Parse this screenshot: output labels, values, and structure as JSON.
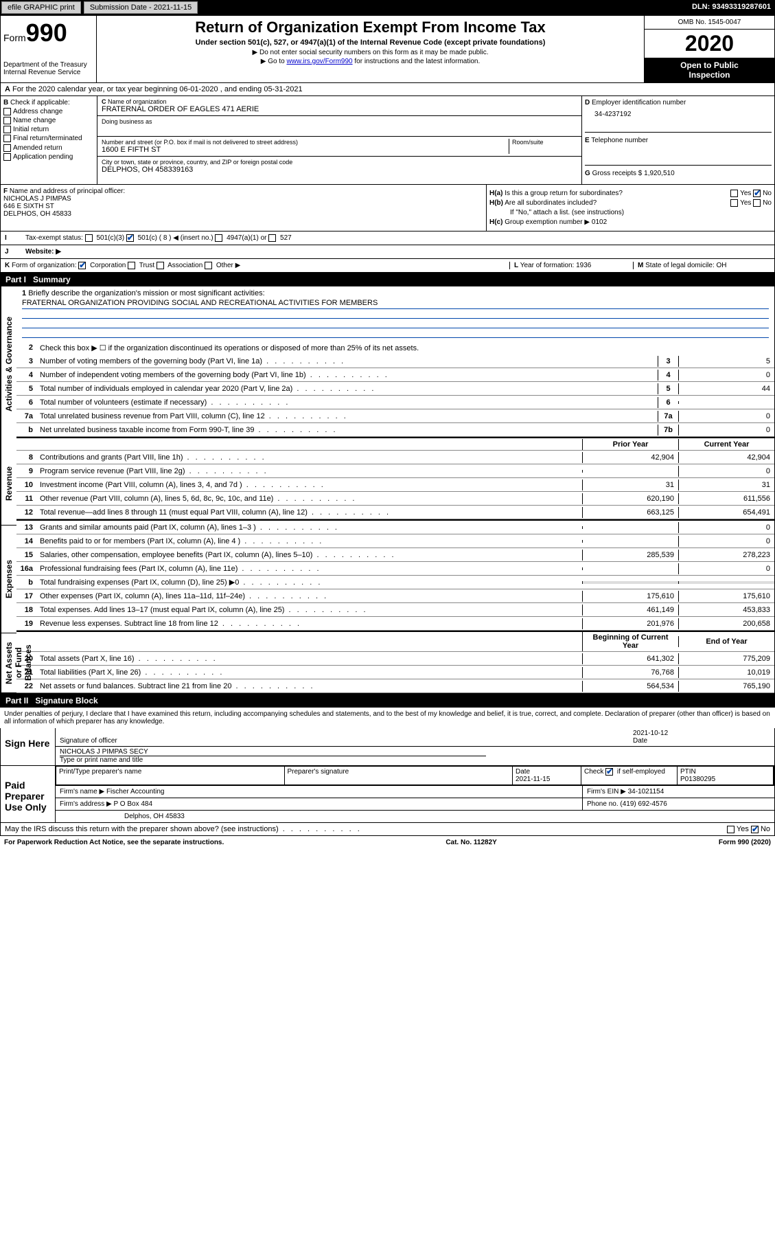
{
  "topbar": {
    "efile": "efile GRAPHIC print",
    "subdate_label": "Submission Date - 2021-11-15",
    "dln_label": "DLN: 93493319287601"
  },
  "header": {
    "form_word": "Form",
    "form_num": "990",
    "dept1": "Department of the Treasury",
    "dept2": "Internal Revenue Service",
    "title": "Return of Organization Exempt From Income Tax",
    "sub1": "Under section 501(c), 527, or 4947(a)(1) of the Internal Revenue Code (except private foundations)",
    "sub2": "Do not enter social security numbers on this form as it may be made public.",
    "sub3_pre": "Go to ",
    "sub3_link": "www.irs.gov/Form990",
    "sub3_post": " for instructions and the latest information.",
    "omb": "OMB No. 1545-0047",
    "year": "2020",
    "inspection1": "Open to Public",
    "inspection2": "Inspection"
  },
  "lineA": "For the 2020 calendar year, or tax year beginning 06-01-2020    , and ending 05-31-2021",
  "boxB": {
    "label": "Check if applicable:",
    "opts": [
      "Address change",
      "Name change",
      "Initial return",
      "Final return/terminated",
      "Amended return",
      "Application pending"
    ]
  },
  "boxC": {
    "name_label": "Name of organization",
    "name": "FRATERNAL ORDER OF EAGLES 471 AERIE",
    "dba_label": "Doing business as",
    "street_label": "Number and street (or P.O. box if mail is not delivered to street address)",
    "room_label": "Room/suite",
    "street": "1600 E FIFTH ST",
    "city_label": "City or town, state or province, country, and ZIP or foreign postal code",
    "city": "DELPHOS, OH  458339163"
  },
  "boxD": {
    "label": "Employer identification number",
    "val": "34-4237192"
  },
  "boxE": {
    "label": "Telephone number",
    "val": ""
  },
  "boxG": {
    "label": "Gross receipts $",
    "val": "1,920,510"
  },
  "boxF": {
    "label": "Name and address of principal officer:",
    "name": "NICHOLAS J PIMPAS",
    "street": "646 E SIXTH ST",
    "city": "DELPHOS, OH  45833"
  },
  "boxH": {
    "a": "Is this a group return for subordinates?",
    "b": "Are all subordinates included?",
    "b_note": "If \"No,\" attach a list. (see instructions)",
    "c": "Group exemption number ▶",
    "c_val": "0102"
  },
  "boxI": {
    "label": "Tax-exempt status:",
    "c8": "501(c) ( 8 ) ◀ (insert no.)"
  },
  "boxJ": {
    "label": "Website: ▶"
  },
  "boxK": {
    "label": "Form of organization:"
  },
  "boxL": {
    "label": "Year of formation:",
    "val": "1936"
  },
  "boxM": {
    "label": "State of legal domicile:",
    "val": "OH"
  },
  "part1": {
    "header_num": "Part I",
    "header_title": "Summary",
    "vert1": "Activities & Governance",
    "vert2": "Revenue",
    "vert3": "Expenses",
    "vert4": "Net Assets or Fund Balances",
    "line1_label": "Briefly describe the organization's mission or most significant activities:",
    "line1_val": "FRATERNAL ORGANIZATION PROVIDING SOCIAL AND RECREATIONAL ACTIVITIES FOR MEMBERS",
    "line2": "Check this box ▶ ☐  if the organization discontinued its operations or disposed of more than 25% of its net assets.",
    "lines_gov": [
      {
        "n": "3",
        "t": "Number of voting members of the governing body (Part VI, line 1a)",
        "box": "3",
        "v": "5"
      },
      {
        "n": "4",
        "t": "Number of independent voting members of the governing body (Part VI, line 1b)",
        "box": "4",
        "v": "0"
      },
      {
        "n": "5",
        "t": "Total number of individuals employed in calendar year 2020 (Part V, line 2a)",
        "box": "5",
        "v": "44"
      },
      {
        "n": "6",
        "t": "Total number of volunteers (estimate if necessary)",
        "box": "6",
        "v": ""
      },
      {
        "n": "7a",
        "t": "Total unrelated business revenue from Part VIII, column (C), line 12",
        "box": "7a",
        "v": "0"
      },
      {
        "n": "b",
        "t": "Net unrelated business taxable income from Form 990-T, line 39",
        "box": "7b",
        "v": "0"
      }
    ],
    "col_prior": "Prior Year",
    "col_current": "Current Year",
    "col_begin": "Beginning of Current Year",
    "col_end": "End of Year",
    "lines_rev": [
      {
        "n": "8",
        "t": "Contributions and grants (Part VIII, line 1h)",
        "p": "42,904",
        "c": "42,904"
      },
      {
        "n": "9",
        "t": "Program service revenue (Part VIII, line 2g)",
        "p": "",
        "c": "0"
      },
      {
        "n": "10",
        "t": "Investment income (Part VIII, column (A), lines 3, 4, and 7d )",
        "p": "31",
        "c": "31"
      },
      {
        "n": "11",
        "t": "Other revenue (Part VIII, column (A), lines 5, 6d, 8c, 9c, 10c, and 11e)",
        "p": "620,190",
        "c": "611,556"
      },
      {
        "n": "12",
        "t": "Total revenue—add lines 8 through 11 (must equal Part VIII, column (A), line 12)",
        "p": "663,125",
        "c": "654,491"
      }
    ],
    "lines_exp": [
      {
        "n": "13",
        "t": "Grants and similar amounts paid (Part IX, column (A), lines 1–3 )",
        "p": "",
        "c": "0"
      },
      {
        "n": "14",
        "t": "Benefits paid to or for members (Part IX, column (A), line 4 )",
        "p": "",
        "c": "0"
      },
      {
        "n": "15",
        "t": "Salaries, other compensation, employee benefits (Part IX, column (A), lines 5–10)",
        "p": "285,539",
        "c": "278,223"
      },
      {
        "n": "16a",
        "t": "Professional fundraising fees (Part IX, column (A), line 11e)",
        "p": "",
        "c": "0"
      },
      {
        "n": "b",
        "t": "Total fundraising expenses (Part IX, column (D), line 25) ▶0",
        "p": "shade",
        "c": "shade"
      },
      {
        "n": "17",
        "t": "Other expenses (Part IX, column (A), lines 11a–11d, 11f–24e)",
        "p": "175,610",
        "c": "175,610"
      },
      {
        "n": "18",
        "t": "Total expenses. Add lines 13–17 (must equal Part IX, column (A), line 25)",
        "p": "461,149",
        "c": "453,833"
      },
      {
        "n": "19",
        "t": "Revenue less expenses. Subtract line 18 from line 12",
        "p": "201,976",
        "c": "200,658"
      }
    ],
    "lines_net": [
      {
        "n": "20",
        "t": "Total assets (Part X, line 16)",
        "p": "641,302",
        "c": "775,209"
      },
      {
        "n": "21",
        "t": "Total liabilities (Part X, line 26)",
        "p": "76,768",
        "c": "10,019"
      },
      {
        "n": "22",
        "t": "Net assets or fund balances. Subtract line 21 from line 20",
        "p": "564,534",
        "c": "765,190"
      }
    ]
  },
  "part2": {
    "header_num": "Part II",
    "header_title": "Signature Block",
    "perjury": "Under penalties of perjury, I declare that I have examined this return, including accompanying schedules and statements, and to the best of my knowledge and belief, it is true, correct, and complete. Declaration of preparer (other than officer) is based on all information of which preparer has any knowledge.",
    "sign_here": "Sign Here",
    "sig_officer": "Signature of officer",
    "sig_date_label": "Date",
    "sig_date": "2021-10-12",
    "officer_name": "NICHOLAS J PIMPAS SECY",
    "officer_type_label": "Type or print name and title",
    "paid_prep": "Paid Preparer Use Only",
    "prep_name_label": "Print/Type preparer's name",
    "prep_sig_label": "Preparer's signature",
    "prep_date_label": "Date",
    "prep_date": "2021-11-15",
    "prep_check": "Check ☑ if self-employed",
    "ptin_label": "PTIN",
    "ptin": "P01380295",
    "firm_name_label": "Firm's name    ▶",
    "firm_name": "Fischer Accounting",
    "firm_ein_label": "Firm's EIN ▶",
    "firm_ein": "34-1021154",
    "firm_addr_label": "Firm's address ▶",
    "firm_addr1": "P O Box 484",
    "firm_addr2": "Delphos, OH  45833",
    "phone_label": "Phone no.",
    "phone": "(419) 692-4576",
    "discuss": "May the IRS discuss this return with the preparer shown above? (see instructions)"
  },
  "footer": {
    "pra": "For Paperwork Reduction Act Notice, see the separate instructions.",
    "cat": "Cat. No. 11282Y",
    "form": "Form 990 (2020)"
  }
}
